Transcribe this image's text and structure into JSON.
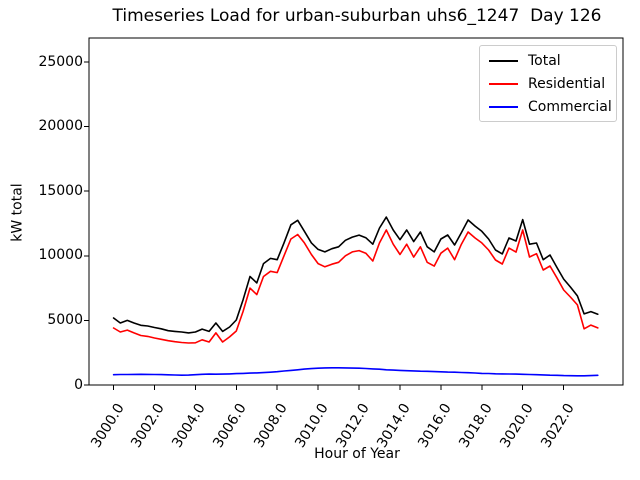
{
  "chart_data": {
    "type": "line",
    "title": "Timeseries Load for urban-suburban uhs6_1247  Day 126",
    "xlabel": "Hour of Year",
    "ylabel": "kW total",
    "xlim": [
      2998.8,
      3024.9
    ],
    "ylim": [
      0,
      26860
    ],
    "grid": false,
    "xticks": [
      3000,
      3002,
      3004,
      3006,
      3008,
      3010,
      3012,
      3014,
      3016,
      3018,
      3020,
      3022
    ],
    "xtick_labels": [
      "3000.0",
      "3002.0",
      "3004.0",
      "3006.0",
      "3008.0",
      "3010.0",
      "3012.0",
      "3014.0",
      "3016.0",
      "3018.0",
      "3020.0",
      "3022.0"
    ],
    "yticks": [
      0,
      5000,
      10000,
      15000,
      20000,
      25000
    ],
    "ytick_labels": [
      "0",
      "5000",
      "10000",
      "15000",
      "20000",
      "25000"
    ],
    "legend": {
      "position": "upper right",
      "entries": [
        {
          "label": "Total",
          "color": "#000000"
        },
        {
          "label": "Residential",
          "color": "#ff0000"
        },
        {
          "label": "Commercial",
          "color": "#0000ff"
        }
      ]
    },
    "x": [
      3000.0,
      3000.33,
      3000.67,
      3001.0,
      3001.33,
      3001.67,
      3002.0,
      3002.33,
      3002.67,
      3003.0,
      3003.33,
      3003.67,
      3004.0,
      3004.33,
      3004.67,
      3005.0,
      3005.33,
      3005.67,
      3006.0,
      3006.33,
      3006.67,
      3007.0,
      3007.33,
      3007.67,
      3008.0,
      3008.33,
      3008.67,
      3009.0,
      3009.33,
      3009.67,
      3010.0,
      3010.33,
      3010.67,
      3011.0,
      3011.33,
      3011.67,
      3012.0,
      3012.33,
      3012.67,
      3013.0,
      3013.33,
      3013.67,
      3014.0,
      3014.33,
      3014.67,
      3015.0,
      3015.33,
      3015.67,
      3016.0,
      3016.33,
      3016.67,
      3017.0,
      3017.33,
      3017.67,
      3018.0,
      3018.33,
      3018.67,
      3019.0,
      3019.33,
      3019.67,
      3020.0,
      3020.33,
      3020.67,
      3021.0,
      3021.33,
      3021.67,
      3022.0,
      3022.33,
      3022.67,
      3023.0,
      3023.33,
      3023.67
    ],
    "series": [
      {
        "name": "Total",
        "color": "#000000",
        "values": [
          5190,
          4800,
          5000,
          4800,
          4620,
          4570,
          4450,
          4350,
          4200,
          4150,
          4100,
          4030,
          4100,
          4330,
          4150,
          4800,
          4150,
          4490,
          5030,
          6600,
          8400,
          7900,
          9400,
          9800,
          9700,
          11000,
          12400,
          12750,
          11900,
          11000,
          10500,
          10300,
          10550,
          10700,
          11200,
          11450,
          11600,
          11400,
          10900,
          12150,
          13000,
          12000,
          11250,
          12000,
          11100,
          11840,
          10700,
          10300,
          11300,
          11610,
          10840,
          11800,
          12770,
          12300,
          11900,
          11300,
          10450,
          10150,
          11380,
          11150,
          12800,
          10900,
          10990,
          9700,
          10060,
          9100,
          8200,
          7585,
          6900,
          5500,
          5680,
          5480
        ]
      },
      {
        "name": "Residential",
        "color": "#ff0000",
        "values": [
          4410,
          4100,
          4250,
          4030,
          3830,
          3760,
          3640,
          3540,
          3430,
          3350,
          3290,
          3250,
          3270,
          3500,
          3330,
          4030,
          3330,
          3720,
          4180,
          5700,
          7500,
          7000,
          8400,
          8800,
          8700,
          10000,
          11300,
          11650,
          11000,
          10100,
          9400,
          9150,
          9350,
          9500,
          10000,
          10300,
          10400,
          10200,
          9600,
          11000,
          12000,
          10900,
          10100,
          10900,
          9900,
          10700,
          9500,
          9200,
          10200,
          10600,
          9700,
          10900,
          11840,
          11380,
          11000,
          10450,
          9675,
          9365,
          10600,
          10290,
          12000,
          9910,
          10160,
          8900,
          9210,
          8300,
          7350,
          6810,
          6200,
          4350,
          4640,
          4420
        ]
      },
      {
        "name": "Commercial",
        "color": "#0000ff",
        "values": [
          800,
          810,
          815,
          820,
          825,
          820,
          815,
          805,
          790,
          775,
          760,
          765,
          800,
          830,
          840,
          835,
          845,
          860,
          880,
          900,
          920,
          940,
          960,
          990,
          1030,
          1080,
          1130,
          1180,
          1230,
          1270,
          1300,
          1320,
          1330,
          1330,
          1320,
          1310,
          1300,
          1280,
          1250,
          1220,
          1180,
          1150,
          1130,
          1110,
          1090,
          1070,
          1060,
          1040,
          1020,
          1000,
          990,
          970,
          950,
          930,
          900,
          890,
          870,
          860,
          850,
          840,
          830,
          810,
          800,
          780,
          760,
          750,
          730,
          720,
          710,
          710,
          730,
          750
        ]
      }
    ]
  }
}
